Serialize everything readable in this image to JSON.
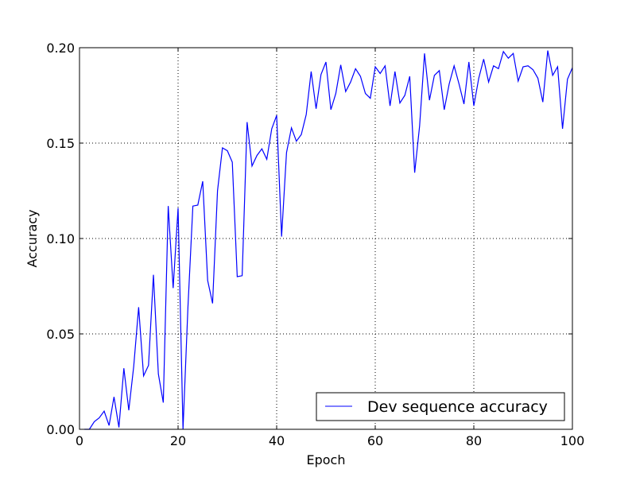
{
  "chart_data": {
    "type": "line",
    "title": "",
    "xlabel": "Epoch",
    "ylabel": "Accuracy",
    "xlim": [
      0,
      100
    ],
    "ylim": [
      0,
      0.2
    ],
    "xticks": [
      0,
      20,
      40,
      60,
      80,
      100
    ],
    "yticks": [
      0.0,
      0.05,
      0.1,
      0.15,
      0.2
    ],
    "xtick_labels": [
      "0",
      "20",
      "40",
      "60",
      "80",
      "100"
    ],
    "ytick_labels": [
      "0.00",
      "0.05",
      "0.10",
      "0.15",
      "0.20"
    ],
    "grid": true,
    "legend_position": "lower-right",
    "series": [
      {
        "name": "Dev sequence accuracy",
        "color": "#0000ff",
        "x": [
          1,
          2,
          3,
          4,
          5,
          6,
          7,
          8,
          9,
          10,
          11,
          12,
          13,
          14,
          15,
          16,
          17,
          18,
          19,
          20,
          21,
          22,
          23,
          24,
          25,
          26,
          27,
          28,
          29,
          30,
          31,
          32,
          33,
          34,
          35,
          36,
          37,
          38,
          39,
          40,
          41,
          42,
          43,
          44,
          45,
          46,
          47,
          48,
          49,
          50,
          51,
          52,
          53,
          54,
          55,
          56,
          57,
          58,
          59,
          60,
          61,
          62,
          63,
          64,
          65,
          66,
          67,
          68,
          69,
          70,
          71,
          72,
          73,
          74,
          75,
          76,
          77,
          78,
          79,
          80,
          81,
          82,
          83,
          84,
          85,
          86,
          87,
          88,
          89,
          90,
          91,
          92,
          93,
          94,
          95,
          96,
          97,
          98,
          99,
          100
        ],
        "values": [
          0.0,
          0.0,
          0.004,
          0.006,
          0.0095,
          0.002,
          0.017,
          0.001,
          0.032,
          0.01,
          0.033,
          0.064,
          0.028,
          0.0335,
          0.081,
          0.029,
          0.014,
          0.117,
          0.074,
          0.116,
          0.0,
          0.064,
          0.117,
          0.1175,
          0.13,
          0.078,
          0.066,
          0.125,
          0.1475,
          0.146,
          0.14,
          0.08,
          0.0805,
          0.161,
          0.138,
          0.1435,
          0.147,
          0.1415,
          0.1575,
          0.1645,
          0.101,
          0.145,
          0.158,
          0.151,
          0.1545,
          0.165,
          0.1875,
          0.168,
          0.186,
          0.1925,
          0.1675,
          0.176,
          0.191,
          0.177,
          0.182,
          0.189,
          0.185,
          0.176,
          0.1735,
          0.19,
          0.1865,
          0.1905,
          0.1695,
          0.1875,
          0.171,
          0.175,
          0.185,
          0.1345,
          0.159,
          0.197,
          0.1725,
          0.1855,
          0.188,
          0.1675,
          0.181,
          0.1905,
          0.181,
          0.1705,
          0.1925,
          0.1695,
          0.184,
          0.194,
          0.182,
          0.1905,
          0.189,
          0.198,
          0.1945,
          0.197,
          0.1825,
          0.19,
          0.1905,
          0.1885,
          0.184,
          0.1715,
          0.1985,
          0.1855,
          0.19,
          0.1575,
          0.1835,
          0.1895
        ]
      }
    ]
  }
}
